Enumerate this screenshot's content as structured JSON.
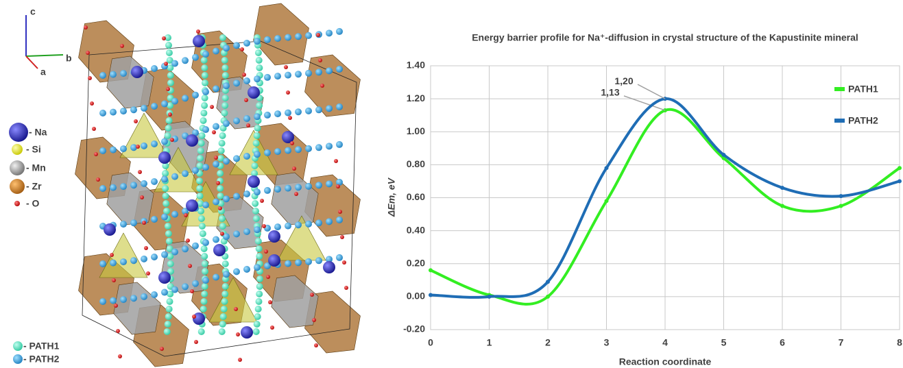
{
  "structure": {
    "axes": [
      "c",
      "b",
      "a"
    ],
    "legend": [
      "- Na",
      "- Si",
      "- Mn",
      "- Zr",
      "- O",
      "- PATH1",
      "- PATH2"
    ]
  },
  "chart_data": {
    "type": "line",
    "title": "Energy barrier profile for Na⁺-diffusion in crystal structure of the Kapustinite mineral",
    "x_label": "Reaction coordinate",
    "y_label": "ΔEm, eV",
    "x": [
      0,
      1,
      2,
      3,
      4,
      5,
      6,
      7,
      8
    ],
    "series": [
      {
        "name": "PATH1",
        "color": "#33ee22",
        "values": [
          0.16,
          0.01,
          0.0,
          0.58,
          1.13,
          0.84,
          0.55,
          0.55,
          0.78
        ],
        "value_labels": [
          null,
          null,
          null,
          null,
          "1,13",
          null,
          null,
          null,
          null
        ]
      },
      {
        "name": "PATH2",
        "color": "#1f6db5",
        "values": [
          0.01,
          0.0,
          0.09,
          0.78,
          1.2,
          0.86,
          0.66,
          0.61,
          0.7
        ],
        "value_labels": [
          null,
          null,
          null,
          null,
          "1,20",
          null,
          null,
          null,
          null
        ]
      }
    ],
    "xlim": [
      0,
      8
    ],
    "xticks": [
      0,
      1,
      2,
      3,
      4,
      5,
      6,
      7,
      8
    ],
    "ylim": [
      -0.2,
      1.4
    ],
    "yticks": [
      {
        "value": -0.2,
        "label": "-0.20"
      },
      {
        "value": 0,
        "label": "0.00"
      },
      {
        "value": 0.2,
        "label": "0.20"
      },
      {
        "value": 0.4,
        "label": "0.40"
      },
      {
        "value": 0.6,
        "label": "0.60"
      },
      {
        "value": 0.8,
        "label": "0.80"
      },
      {
        "value": 1.0,
        "label": "1.00"
      },
      {
        "value": 1.2,
        "label": "1.20"
      },
      {
        "value": 1.4,
        "label": "1.40"
      }
    ],
    "grid": true,
    "legend": "top-right"
  }
}
